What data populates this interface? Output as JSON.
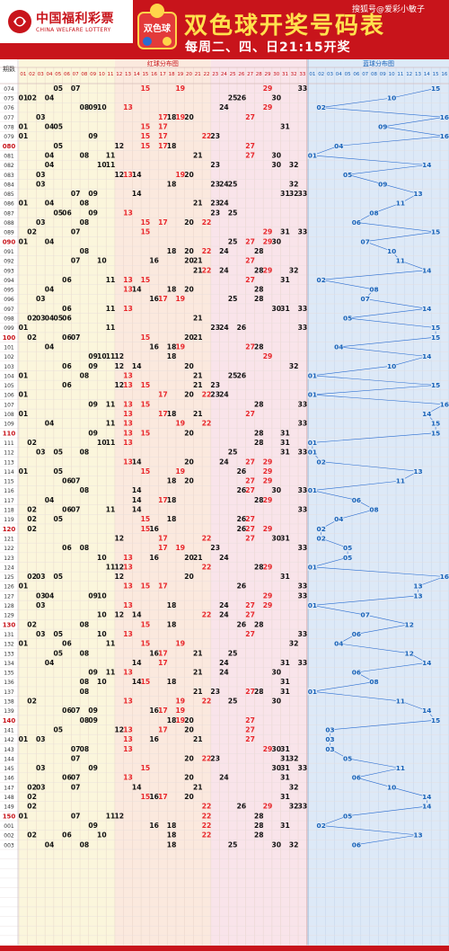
{
  "header": {
    "logo_cn": "中国福利彩票",
    "logo_en": "CHINA WELFARE LOTTERY",
    "badge_text": "双色球",
    "title": "双色球开奖号码表",
    "subtitle": "每周二、四、日21:15开奖",
    "watermark": "搜狐号@爱彩小敏子"
  },
  "colors": {
    "frame": "#c8141b",
    "red_zone_a": "#fbf6dc",
    "red_zone_b": "#fbe9de",
    "red_zone_c": "#f9e4ea",
    "blue_zone": "#dde9f7",
    "red_hit": "#e8262b",
    "blue_hit": "#1a63b8",
    "ink": "#111111"
  },
  "chart_data": {
    "type": "table",
    "row_header_label": "期数",
    "red_zone_label": "红球分布图",
    "blue_zone_label": "蓝球分布图",
    "red_columns": [
      "01",
      "02",
      "03",
      "04",
      "05",
      "06",
      "07",
      "08",
      "09",
      "10",
      "11",
      "12",
      "13",
      "14",
      "15",
      "16",
      "17",
      "18",
      "19",
      "20",
      "21",
      "22",
      "23",
      "24",
      "25",
      "26",
      "27",
      "28",
      "29",
      "30",
      "31",
      "32",
      "33"
    ],
    "blue_columns": [
      "01",
      "02",
      "03",
      "04",
      "05",
      "06",
      "07",
      "08",
      "09",
      "10",
      "11",
      "12",
      "13",
      "14",
      "15",
      "16"
    ],
    "hot_note": "Red-colored numbers mark repeated/hot red balls (e.g. 13, 15, 17, 19, 22, 27, 29)",
    "draws": [
      {
        "issue": "074",
        "red": [
          5,
          7,
          15,
          19,
          29,
          33
        ],
        "blue": 15
      },
      {
        "issue": "075",
        "red": [
          1,
          2,
          4,
          25,
          26,
          30
        ],
        "blue": 10
      },
      {
        "issue": "076",
        "red": [
          8,
          9,
          10,
          13,
          24,
          29
        ],
        "blue": 2
      },
      {
        "issue": "077",
        "red": [
          3,
          17,
          18,
          19,
          20,
          27
        ],
        "blue": 16
      },
      {
        "issue": "078",
        "red": [
          1,
          4,
          5,
          15,
          17,
          31
        ],
        "blue": 9
      },
      {
        "issue": "079",
        "red": [
          1,
          9,
          15,
          17,
          22,
          23
        ],
        "blue": 16
      },
      {
        "issue": "080",
        "red": [
          5,
          12,
          15,
          17,
          18,
          27
        ],
        "blue": 4
      },
      {
        "issue": "081",
        "red": [
          4,
          8,
          11,
          21,
          27,
          30
        ],
        "blue": 1
      },
      {
        "issue": "082",
        "red": [
          4,
          10,
          11,
          23,
          30,
          32
        ],
        "blue": 14
      },
      {
        "issue": "083",
        "red": [
          3,
          12,
          13,
          14,
          19,
          20
        ],
        "blue": 5
      },
      {
        "issue": "084",
        "red": [
          3,
          18,
          23,
          24,
          25,
          32
        ],
        "blue": 9
      },
      {
        "issue": "085",
        "red": [
          7,
          9,
          14,
          31,
          32,
          33
        ],
        "blue": 13
      },
      {
        "issue": "086",
        "red": [
          1,
          4,
          8,
          21,
          23,
          24
        ],
        "blue": 11
      },
      {
        "issue": "087",
        "red": [
          5,
          6,
          9,
          13,
          23,
          25
        ],
        "blue": 8
      },
      {
        "issue": "088",
        "red": [
          3,
          8,
          15,
          17,
          20,
          22
        ],
        "blue": 6
      },
      {
        "issue": "089",
        "red": [
          2,
          7,
          15,
          29,
          31,
          33
        ],
        "blue": 15
      },
      {
        "issue": "090",
        "red": [
          1,
          4,
          25,
          27,
          29,
          30
        ],
        "blue": 7
      },
      {
        "issue": "091",
        "red": [
          8,
          18,
          20,
          22,
          24,
          28
        ],
        "blue": 10
      },
      {
        "issue": "092",
        "red": [
          7,
          10,
          16,
          20,
          21,
          27
        ],
        "blue": 11
      },
      {
        "issue": "093",
        "red": [
          21,
          22,
          24,
          28,
          29,
          32
        ],
        "blue": 14
      },
      {
        "issue": "094",
        "red": [
          6,
          11,
          13,
          15,
          27,
          31
        ],
        "blue": 2
      },
      {
        "issue": "095",
        "red": [
          4,
          13,
          14,
          18,
          20,
          28
        ],
        "blue": 8
      },
      {
        "issue": "096",
        "red": [
          3,
          16,
          17,
          19,
          25,
          28
        ],
        "blue": 7
      },
      {
        "issue": "097",
        "red": [
          6,
          11,
          13,
          30,
          31,
          33
        ],
        "blue": 14
      },
      {
        "issue": "098",
        "red": [
          2,
          3,
          4,
          5,
          6,
          21
        ],
        "blue": 5
      },
      {
        "issue": "099",
        "red": [
          1,
          11,
          23,
          24,
          26,
          33
        ],
        "blue": 15
      },
      {
        "issue": "100",
        "red": [
          2,
          6,
          7,
          15,
          20,
          21
        ],
        "blue": 15
      },
      {
        "issue": "101",
        "red": [
          4,
          16,
          18,
          19,
          27,
          28
        ],
        "blue": 4
      },
      {
        "issue": "102",
        "red": [
          9,
          10,
          11,
          12,
          18,
          29
        ],
        "blue": 14
      },
      {
        "issue": "103",
        "red": [
          6,
          9,
          12,
          14,
          20,
          32
        ],
        "blue": 10
      },
      {
        "issue": "104",
        "red": [
          1,
          8,
          13,
          21,
          25,
          26
        ],
        "blue": 1
      },
      {
        "issue": "105",
        "red": [
          6,
          12,
          13,
          15,
          21,
          23
        ],
        "blue": 15
      },
      {
        "issue": "106",
        "red": [
          1,
          17,
          20,
          22,
          23,
          24
        ],
        "blue": 1
      },
      {
        "issue": "107",
        "red": [
          9,
          11,
          13,
          15,
          28,
          33
        ],
        "blue": 16
      },
      {
        "issue": "108",
        "red": [
          1,
          13,
          17,
          18,
          21,
          27
        ],
        "blue": 14
      },
      {
        "issue": "109",
        "red": [
          4,
          11,
          13,
          19,
          22,
          33
        ],
        "blue": 15
      },
      {
        "issue": "110",
        "red": [
          9,
          13,
          15,
          20,
          28,
          31
        ],
        "blue": 15
      },
      {
        "issue": "111",
        "red": [
          2,
          10,
          11,
          13,
          28,
          31
        ],
        "blue": 1
      },
      {
        "issue": "112",
        "red": [
          3,
          5,
          8,
          25,
          31,
          33
        ],
        "blue": 1
      },
      {
        "issue": "113",
        "red": [
          13,
          14,
          20,
          24,
          27,
          29
        ],
        "blue": 2
      },
      {
        "issue": "114",
        "red": [
          1,
          5,
          15,
          19,
          26,
          29
        ],
        "blue": 13
      },
      {
        "issue": "115",
        "red": [
          6,
          7,
          18,
          20,
          27,
          29
        ],
        "blue": 11
      },
      {
        "issue": "116",
        "red": [
          8,
          14,
          26,
          27,
          30,
          33
        ],
        "blue": 1
      },
      {
        "issue": "117",
        "red": [
          4,
          14,
          17,
          18,
          28,
          29
        ],
        "blue": 6
      },
      {
        "issue": "118",
        "red": [
          2,
          6,
          7,
          11,
          14,
          33
        ],
        "blue": 8
      },
      {
        "issue": "119",
        "red": [
          2,
          5,
          15,
          18,
          26,
          27
        ],
        "blue": 4
      },
      {
        "issue": "120",
        "red": [
          2,
          15,
          16,
          26,
          27,
          29
        ],
        "blue": 2
      },
      {
        "issue": "121",
        "red": [
          12,
          17,
          22,
          27,
          30,
          31
        ],
        "blue": 2
      },
      {
        "issue": "122",
        "red": [
          6,
          8,
          17,
          19,
          23,
          33
        ],
        "blue": 5
      },
      {
        "issue": "123",
        "red": [
          10,
          13,
          16,
          20,
          21,
          24
        ],
        "blue": 5
      },
      {
        "issue": "124",
        "red": [
          11,
          12,
          13,
          22,
          28,
          29
        ],
        "blue": 1
      },
      {
        "issue": "125",
        "red": [
          2,
          3,
          5,
          12,
          20,
          31
        ],
        "blue": 16
      },
      {
        "issue": "126",
        "red": [
          1,
          13,
          15,
          17,
          26,
          33
        ],
        "blue": 13
      },
      {
        "issue": "127",
        "red": [
          3,
          4,
          9,
          10,
          29,
          33
        ],
        "blue": 13
      },
      {
        "issue": "128",
        "red": [
          3,
          13,
          18,
          24,
          27,
          29
        ],
        "blue": 1
      },
      {
        "issue": "129",
        "red": [
          10,
          12,
          14,
          22,
          24,
          27
        ],
        "blue": 7
      },
      {
        "issue": "130",
        "red": [
          2,
          8,
          15,
          18,
          26,
          28
        ],
        "blue": 12
      },
      {
        "issue": "131",
        "red": [
          3,
          5,
          10,
          13,
          27,
          33
        ],
        "blue": 6
      },
      {
        "issue": "132",
        "red": [
          1,
          6,
          11,
          15,
          19,
          32
        ],
        "blue": 4
      },
      {
        "issue": "133",
        "red": [
          5,
          8,
          16,
          17,
          21,
          25
        ],
        "blue": 12
      },
      {
        "issue": "134",
        "red": [
          4,
          14,
          17,
          24,
          31,
          33
        ],
        "blue": 14
      },
      {
        "issue": "135",
        "red": [
          9,
          11,
          13,
          21,
          24,
          30
        ],
        "blue": 6
      },
      {
        "issue": "136",
        "red": [
          8,
          10,
          14,
          15,
          18,
          31
        ],
        "blue": 8
      },
      {
        "issue": "137",
        "red": [
          8,
          21,
          23,
          27,
          28,
          31
        ],
        "blue": 1
      },
      {
        "issue": "138",
        "red": [
          2,
          13,
          19,
          22,
          25,
          30
        ],
        "blue": 11
      },
      {
        "issue": "139",
        "red": [
          6,
          7,
          9,
          16,
          17,
          19
        ],
        "blue": 14
      },
      {
        "issue": "140",
        "red": [
          8,
          9,
          18,
          19,
          20,
          27
        ],
        "blue": 15
      },
      {
        "issue": "141",
        "red": [
          5,
          12,
          13,
          17,
          20,
          27
        ],
        "blue": 3
      },
      {
        "issue": "142",
        "red": [
          1,
          3,
          13,
          16,
          21,
          27
        ],
        "blue": 3
      },
      {
        "issue": "143",
        "red": [
          7,
          8,
          13,
          29,
          30,
          31
        ],
        "blue": 3
      },
      {
        "issue": "144",
        "red": [
          7,
          20,
          22,
          23,
          31,
          32
        ],
        "blue": 5
      },
      {
        "issue": "145",
        "red": [
          3,
          9,
          15,
          30,
          31,
          33
        ],
        "blue": 11
      },
      {
        "issue": "146",
        "red": [
          6,
          7,
          13,
          20,
          24,
          31
        ],
        "blue": 6
      },
      {
        "issue": "147",
        "red": [
          2,
          3,
          7,
          14,
          21,
          32
        ],
        "blue": 10
      },
      {
        "issue": "148",
        "red": [
          2,
          15,
          16,
          17,
          20,
          31
        ],
        "blue": 14
      },
      {
        "issue": "149",
        "red": [
          2,
          22,
          26,
          29,
          32,
          33
        ],
        "blue": 14
      },
      {
        "issue": "150",
        "red": [
          1,
          7,
          11,
          12,
          22,
          28
        ],
        "blue": 5
      },
      {
        "issue": "001",
        "red": [
          9,
          16,
          18,
          22,
          28,
          31
        ],
        "blue": 2
      },
      {
        "issue": "002",
        "red": [
          2,
          6,
          10,
          18,
          22,
          28
        ],
        "blue": 13
      },
      {
        "issue": "003",
        "red": [
          4,
          8,
          18,
          25,
          30,
          32
        ],
        "blue": 6
      }
    ],
    "empty_rows": 10
  }
}
